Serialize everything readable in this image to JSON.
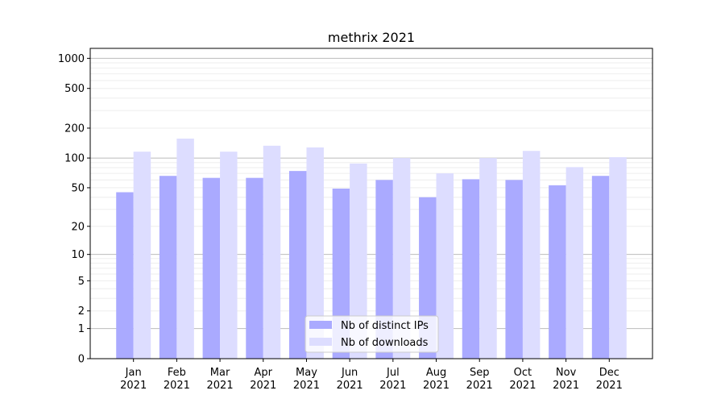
{
  "chart_data": {
    "type": "bar",
    "title": "methrix 2021",
    "xlabel": "",
    "ylabel": "",
    "yscale": "log(1+x)",
    "ylim": [
      0,
      1258
    ],
    "yticks": [
      0,
      1,
      2,
      5,
      10,
      20,
      50,
      100,
      200,
      500,
      1000
    ],
    "ytick_labels": [
      "0",
      "1",
      "2",
      "5",
      "10",
      "20",
      "50",
      "100",
      "200",
      "500",
      "1000"
    ],
    "categories": [
      "Jan\n2021",
      "Feb\n2021",
      "Mar\n2021",
      "Apr\n2021",
      "May\n2021",
      "Jun\n2021",
      "Jul\n2021",
      "Aug\n2021",
      "Sep\n2021",
      "Oct\n2021",
      "Nov\n2021",
      "Dec\n2021"
    ],
    "series": [
      {
        "name": "Nb of distinct IPs",
        "color": "#aaaaff",
        "values": [
          45,
          66,
          63,
          63,
          74,
          49,
          60,
          40,
          61,
          60,
          53,
          66
        ]
      },
      {
        "name": "Nb of downloads",
        "color": "#ddddff",
        "values": [
          116,
          157,
          116,
          133,
          128,
          88,
          100,
          70,
          100,
          118,
          81,
          102
        ]
      }
    ],
    "grid": true,
    "legend_position": "lower-center"
  }
}
